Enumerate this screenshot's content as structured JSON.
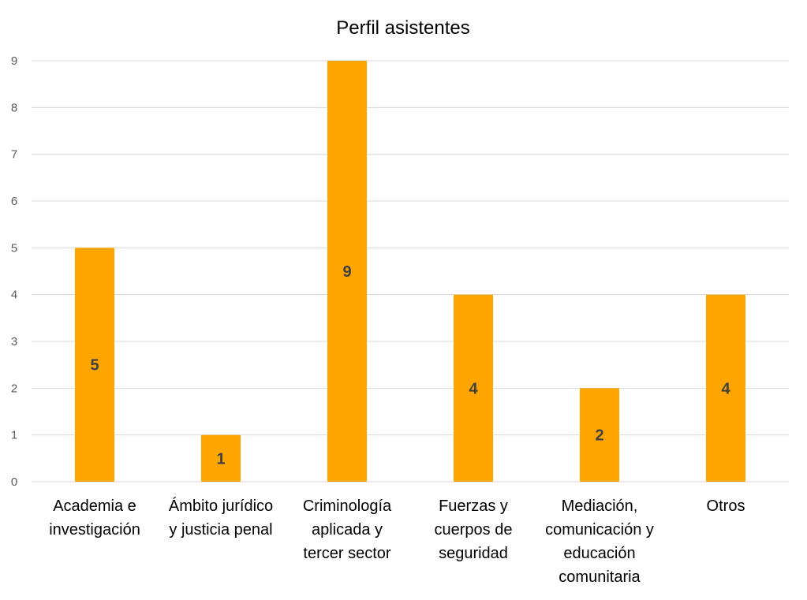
{
  "chart_data": {
    "type": "bar",
    "title": "Perfil asistentes",
    "xlabel": "",
    "ylabel": "",
    "ylim": [
      0,
      9
    ],
    "yticks": [
      0,
      1,
      2,
      3,
      4,
      5,
      6,
      7,
      8,
      9
    ],
    "grid": true,
    "categories": [
      [
        "Academia e",
        "investigación"
      ],
      [
        "Ámbito jurídico",
        "y justicia penal"
      ],
      [
        "Criminología",
        "aplicada y",
        "tercer sector"
      ],
      [
        "Fuerzas y",
        "cuerpos de",
        "seguridad"
      ],
      [
        "Mediación,",
        "comunicación y",
        "educación",
        "comunitaria"
      ],
      [
        "Otros"
      ]
    ],
    "values": [
      5,
      1,
      9,
      4,
      2,
      4
    ],
    "data_labels": [
      "5",
      "1",
      "9",
      "4",
      "2",
      "4"
    ],
    "bar_color": "#FFA500",
    "label_color": "#404040",
    "grid_color": "#D9D9D9"
  }
}
